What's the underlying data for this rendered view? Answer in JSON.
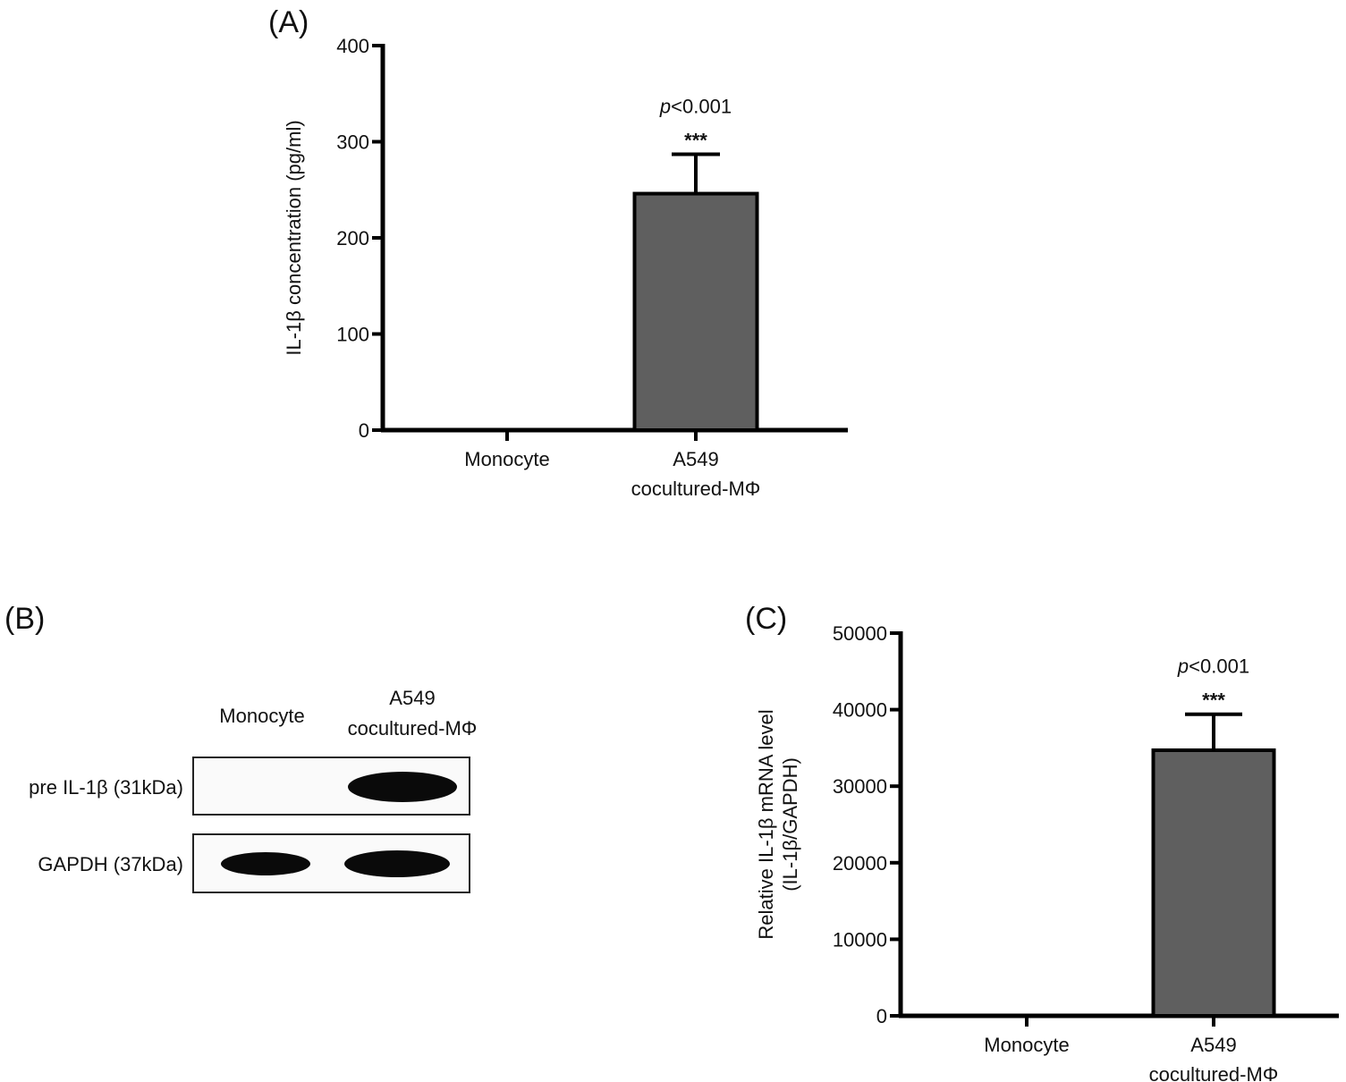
{
  "chart_data": [
    {
      "panel_label": "(A)",
      "type": "bar",
      "categories": [
        "Monocyte",
        [
          "A549",
          "cocultured-MΦ"
        ]
      ],
      "values": [
        0,
        246
      ],
      "error": [
        0,
        41
      ],
      "ylabel": "IL-1β concentration (pg/ml)",
      "ylim": [
        0,
        400
      ],
      "yticks": [
        "0",
        "100",
        "200",
        "300",
        "400"
      ],
      "annotation": {
        "p": "p",
        "p_rest": "<0.001",
        "stars": "***"
      },
      "bar_color": "#5f5f5f",
      "grid": false
    },
    {
      "panel_label": "(C)",
      "type": "bar",
      "categories": [
        "Monocyte",
        [
          "A549",
          "cocultured-MΦ"
        ]
      ],
      "values": [
        0,
        34700
      ],
      "error": [
        0,
        4700
      ],
      "ylabel": [
        "Relative IL-1β mRNA level",
        "(IL-1β/GAPDH)"
      ],
      "ylim": [
        0,
        50000
      ],
      "yticks": [
        "0",
        "10000",
        "20000",
        "30000",
        "40000",
        "50000"
      ],
      "annotation": {
        "p": "p",
        "p_rest": "<0.001",
        "stars": "***"
      },
      "bar_color": "#5f5f5f",
      "grid": false
    }
  ],
  "blot": {
    "panel_label": "(B)",
    "columns": [
      "Monocyte",
      [
        "A549",
        "cocultured-MΦ"
      ]
    ],
    "rows": [
      {
        "label": "pre IL-1β (31kDa)",
        "band_intensity": [
          0,
          1
        ]
      },
      {
        "label": "GAPDH (37kDa)",
        "band_intensity": [
          1,
          1
        ]
      }
    ]
  }
}
